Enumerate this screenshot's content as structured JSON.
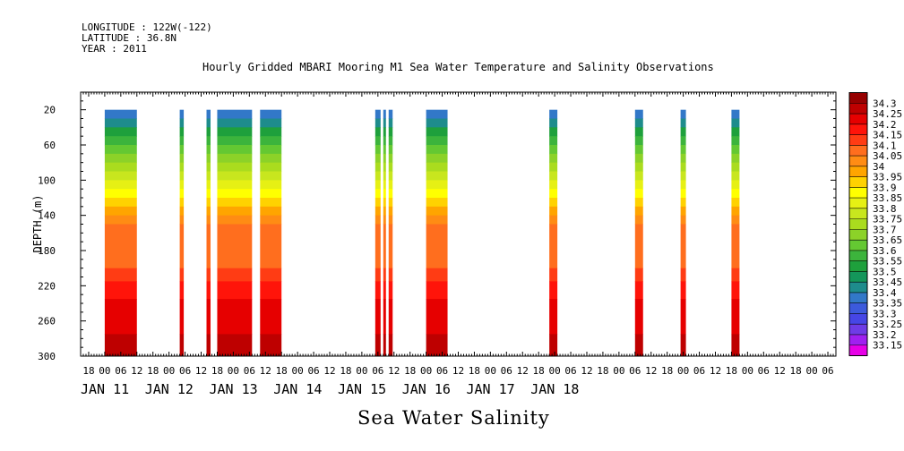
{
  "header": {
    "longitude": "LONGITUDE : 122W(-122)",
    "latitude": "LATITUDE : 36.8N",
    "year": "YEAR : 2011"
  },
  "chart_data": {
    "type": "heatmap",
    "title": "Hourly Gridded MBARI Mooring M1 Sea Water Temperature and Salinity Observations",
    "xlabel": "Sea Water Salinity",
    "ylabel": "DEPTH (m)",
    "x_range_hours": [
      -9,
      273
    ],
    "y_range_m": [
      0,
      300
    ],
    "y_ticks": [
      20,
      60,
      100,
      140,
      180,
      220,
      260,
      300
    ],
    "x_hour_ticks": [
      {
        "h": -6,
        "label": "18"
      },
      {
        "h": 0,
        "label": "00"
      },
      {
        "h": 6,
        "label": "06"
      },
      {
        "h": 12,
        "label": "12"
      },
      {
        "h": 18,
        "label": "18"
      },
      {
        "h": 24,
        "label": "00"
      },
      {
        "h": 30,
        "label": "06"
      },
      {
        "h": 36,
        "label": "12"
      },
      {
        "h": 42,
        "label": "18"
      },
      {
        "h": 48,
        "label": "00"
      },
      {
        "h": 54,
        "label": "06"
      },
      {
        "h": 60,
        "label": "12"
      },
      {
        "h": 66,
        "label": "18"
      },
      {
        "h": 72,
        "label": "00"
      },
      {
        "h": 78,
        "label": "06"
      },
      {
        "h": 84,
        "label": "12"
      },
      {
        "h": 90,
        "label": "18"
      },
      {
        "h": 96,
        "label": "00"
      },
      {
        "h": 102,
        "label": "06"
      },
      {
        "h": 108,
        "label": "12"
      },
      {
        "h": 114,
        "label": "18"
      },
      {
        "h": 120,
        "label": "00"
      },
      {
        "h": 126,
        "label": "06"
      },
      {
        "h": 132,
        "label": "12"
      },
      {
        "h": 138,
        "label": "18"
      },
      {
        "h": 144,
        "label": "00"
      },
      {
        "h": 150,
        "label": "06"
      },
      {
        "h": 156,
        "label": "12"
      },
      {
        "h": 162,
        "label": "18"
      },
      {
        "h": 168,
        "label": "00"
      },
      {
        "h": 174,
        "label": "06"
      },
      {
        "h": 180,
        "label": "12"
      },
      {
        "h": 186,
        "label": "18"
      },
      {
        "h": 192,
        "label": "00"
      },
      {
        "h": 198,
        "label": "06"
      },
      {
        "h": 204,
        "label": "12"
      },
      {
        "h": 210,
        "label": "18"
      },
      {
        "h": 216,
        "label": "00"
      },
      {
        "h": 222,
        "label": "06"
      },
      {
        "h": 228,
        "label": "12"
      },
      {
        "h": 234,
        "label": "18"
      },
      {
        "h": 240,
        "label": "00"
      },
      {
        "h": 246,
        "label": "06"
      },
      {
        "h": 252,
        "label": "12"
      },
      {
        "h": 258,
        "label": "18"
      },
      {
        "h": 264,
        "label": "00"
      },
      {
        "h": 270,
        "label": "06"
      }
    ],
    "x_day_labels": [
      {
        "h": -9,
        "label": "JAN 11"
      },
      {
        "h": 15,
        "label": "JAN 12"
      },
      {
        "h": 39,
        "label": "JAN 13"
      },
      {
        "h": 63,
        "label": "JAN 14"
      },
      {
        "h": 87,
        "label": "JAN 15"
      },
      {
        "h": 111,
        "label": "JAN 16"
      },
      {
        "h": 135,
        "label": "JAN 17"
      },
      {
        "h": 159,
        "label": "JAN 18"
      }
    ],
    "levels": [
      "33.15",
      "33.2",
      "33.25",
      "33.3",
      "33.35",
      "33.4",
      "33.45",
      "33.5",
      "33.55",
      "33.6",
      "33.65",
      "33.7",
      "33.75",
      "33.8",
      "33.85",
      "33.9",
      "33.95",
      "34",
      "34.05",
      "34.1",
      "34.15",
      "34.2",
      "34.25",
      "34.3"
    ],
    "colorbar_colors": [
      "#e600e6",
      "#a020f0",
      "#6e3ce6",
      "#4646e6",
      "#3c5adc",
      "#3278c8",
      "#1e8c8c",
      "#14965a",
      "#1ea03c",
      "#3cb43c",
      "#64c832",
      "#8cd228",
      "#aadc1e",
      "#c8e61e",
      "#e6f014",
      "#ffff00",
      "#ffd200",
      "#ffa500",
      "#ff8c14",
      "#ff6e1e",
      "#ff3c14",
      "#ff140a",
      "#e60000",
      "#be0000",
      "#960000"
    ],
    "depth_profile": [
      {
        "depth_m": 20,
        "salinity": 33.35
      },
      {
        "depth_m": 30,
        "salinity": 33.4
      },
      {
        "depth_m": 40,
        "salinity": 33.5
      },
      {
        "depth_m": 50,
        "salinity": 33.55
      },
      {
        "depth_m": 60,
        "salinity": 33.6
      },
      {
        "depth_m": 70,
        "salinity": 33.65
      },
      {
        "depth_m": 80,
        "salinity": 33.7
      },
      {
        "depth_m": 90,
        "salinity": 33.75
      },
      {
        "depth_m": 100,
        "salinity": 33.8
      },
      {
        "depth_m": 110,
        "salinity": 33.85
      },
      {
        "depth_m": 120,
        "salinity": 33.9
      },
      {
        "depth_m": 130,
        "salinity": 33.95
      },
      {
        "depth_m": 140,
        "salinity": 34.0
      },
      {
        "depth_m": 150,
        "salinity": 34.05
      },
      {
        "depth_m": 200,
        "salinity": 34.1
      },
      {
        "depth_m": 215,
        "salinity": 34.15
      },
      {
        "depth_m": 235,
        "salinity": 34.2
      },
      {
        "depth_m": 275,
        "salinity": 34.25
      },
      {
        "depth_m": 300,
        "salinity": 34.25
      }
    ],
    "data_segments_hours": [
      {
        "start": 0,
        "end": 12,
        "top_m": 20
      },
      {
        "start": 28,
        "end": 29.5,
        "top_m": 20
      },
      {
        "start": 38,
        "end": 39.5,
        "top_m": 20
      },
      {
        "start": 42,
        "end": 55,
        "top_m": 20
      },
      {
        "start": 58,
        "end": 66,
        "top_m": 20
      },
      {
        "start": 101,
        "end": 103,
        "top_m": 20
      },
      {
        "start": 104,
        "end": 105,
        "top_m": 20
      },
      {
        "start": 106,
        "end": 107.5,
        "top_m": 20
      },
      {
        "start": 120,
        "end": 128,
        "top_m": 20
      },
      {
        "start": 166,
        "end": 169,
        "top_m": 20
      },
      {
        "start": 198,
        "end": 201,
        "top_m": 20
      },
      {
        "start": 215,
        "end": 217,
        "top_m": 20
      },
      {
        "start": 234,
        "end": 237,
        "top_m": 20
      }
    ]
  }
}
